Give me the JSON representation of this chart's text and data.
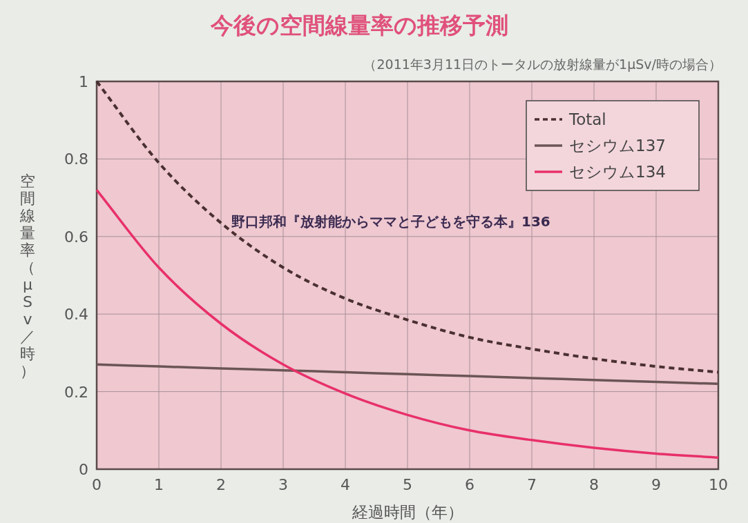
{
  "chart_data": {
    "type": "line",
    "title": "今後の空間線量率の推移予測",
    "subtitle": "（2011年3月11日のトータルの放射線量が1μSv/時の場合）",
    "xlabel": "経過時間（年）",
    "ylabel": "空間線量率（μSv／時）",
    "x": [
      0,
      1,
      2,
      3,
      4,
      5,
      6,
      7,
      8,
      9,
      10
    ],
    "series": [
      {
        "name": "Total",
        "color": "#4a3030",
        "line_style": "dashed",
        "values": [
          1.0,
          0.79,
          0.635,
          0.52,
          0.44,
          0.385,
          0.34,
          0.31,
          0.285,
          0.265,
          0.25
        ]
      },
      {
        "name": "セシウム137",
        "color": "#6b5555",
        "line_style": "solid",
        "values": [
          0.27,
          0.265,
          0.26,
          0.255,
          0.25,
          0.245,
          0.24,
          0.235,
          0.23,
          0.225,
          0.22
        ]
      },
      {
        "name": "セシウム134",
        "color": "#e8306a",
        "line_style": "solid",
        "values": [
          0.72,
          0.52,
          0.375,
          0.27,
          0.195,
          0.14,
          0.1,
          0.075,
          0.055,
          0.04,
          0.03
        ]
      }
    ],
    "xlim": [
      0,
      10
    ],
    "ylim": [
      0,
      1
    ],
    "xticks": [
      0,
      1,
      2,
      3,
      4,
      5,
      6,
      7,
      8,
      9,
      10
    ],
    "yticks": [
      0,
      0.2,
      0.4,
      0.6,
      0.8,
      1
    ],
    "grid": true,
    "legend": "top right",
    "annotations": [
      "野口邦和『放射能からママと子どもを守る本』136"
    ]
  }
}
